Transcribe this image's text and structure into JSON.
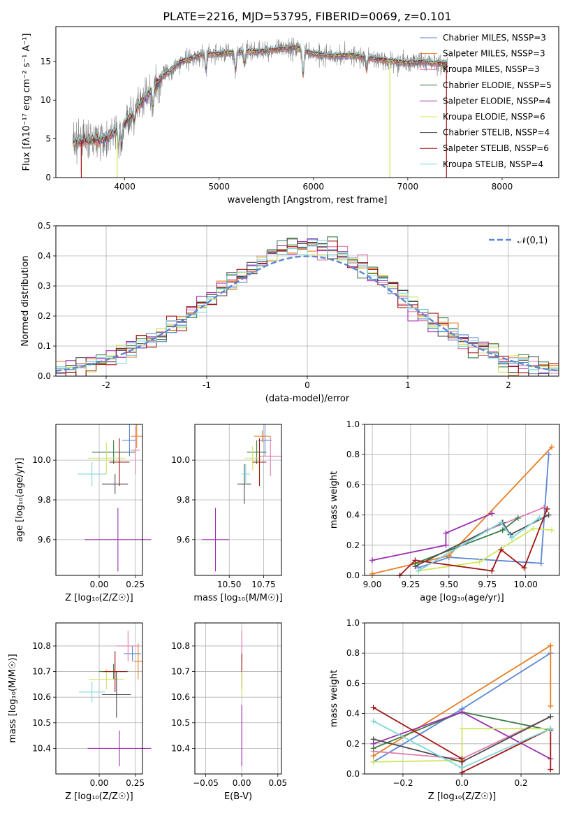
{
  "figure_title": "PLATE=2216, MJD=53795, FIBERID=0069, z=0.101",
  "chart_data": [
    {
      "id": "spectrum",
      "type": "line",
      "xlabel": "wavelength [Angstrom, rest frame]",
      "ylabel": "Flux [fλ10⁻¹⁷ erg cm⁻² s⁻¹ A⁻¹]",
      "xlim": [
        3270,
        8600
      ],
      "ylim": [
        0,
        19.5
      ],
      "xticks": [
        4000,
        5000,
        6000,
        7000,
        8000
      ],
      "yticks": [
        0,
        5,
        10,
        15
      ],
      "legend_position": "right",
      "data_trace": {
        "name": "data",
        "color": "#7f7f7f"
      },
      "continuum_knots": {
        "x": [
          3450,
          3600,
          3800,
          4000,
          4200,
          4400,
          4600,
          4800,
          5000,
          5200,
          5400,
          5600,
          5800,
          6000,
          6200,
          6400,
          6600,
          6800,
          7000,
          7200,
          7400
        ],
        "y": [
          4.5,
          4.8,
          5.0,
          7.0,
          10.0,
          13.0,
          15.0,
          15.8,
          16.0,
          16.2,
          16.3,
          16.5,
          16.8,
          16.0,
          15.7,
          15.8,
          15.4,
          15.1,
          14.8,
          14.9,
          14.6
        ]
      },
      "series": [
        {
          "name": "Chabrier MILES, NSSP=3",
          "color": "#5b86d3"
        },
        {
          "name": "Salpeter MILES, NSSP=3",
          "color": "#e67e22"
        },
        {
          "name": "Kroupa MILES, NSSP=3",
          "color": "#e07bb0"
        },
        {
          "name": "Chabrier ELODIE, NSSP=5",
          "color": "#3a7d44"
        },
        {
          "name": "Salpeter ELODIE, NSSP=4",
          "color": "#9b2fae"
        },
        {
          "name": "Kroupa ELODIE, NSSP=6",
          "color": "#cde85c"
        },
        {
          "name": "Chabrier STELIB, NSSP=4",
          "color": "#4d4d4d"
        },
        {
          "name": "Salpeter STELIB, NSSP=6",
          "color": "#a31515"
        },
        {
          "name": "Kroupa STELIB, NSSP=4",
          "color": "#7fd8dc"
        }
      ]
    },
    {
      "id": "residuals",
      "type": "line",
      "xlabel": "(data-model)/error",
      "ylabel": "Normed distribution",
      "xlim": [
        -2.5,
        2.5
      ],
      "ylim": [
        0,
        0.5
      ],
      "xticks": [
        -2,
        -1,
        0,
        1,
        2
      ],
      "yticks": [
        0.0,
        0.1,
        0.2,
        0.3,
        0.4,
        0.5
      ],
      "grid": true,
      "legend": "𝒩(0,1)",
      "legend_position": "top-right",
      "reference_color": "#5b86d3",
      "bin_width": 0.1,
      "series_colors": [
        "#5b86d3",
        "#e67e22",
        "#e07bb0",
        "#3a7d44",
        "#9b2fae",
        "#cde85c",
        "#4d4d4d",
        "#a31515",
        "#7fd8dc"
      ]
    },
    {
      "id": "age_vs_Z",
      "type": "scatter",
      "xlabel": "Z [log₁₀(Z/Z☉)]",
      "ylabel": "age  [log₁₀(age/yr)]",
      "xlim": [
        -0.3,
        0.3
      ],
      "ylim": [
        9.42,
        10.18
      ],
      "xticks": [
        0.0,
        0.25
      ],
      "xtick_labels": [
        "0.00",
        "0.25"
      ],
      "yticks": [
        9.6,
        9.8,
        10.0
      ],
      "grid": true,
      "points": [
        {
          "color": "#5b86d3",
          "x": 0.21,
          "y": 10.1,
          "xerr": 0.05,
          "yerr": 0.08
        },
        {
          "color": "#e67e22",
          "x": 0.26,
          "y": 10.12,
          "xerr": 0.04,
          "yerr": 0.06
        },
        {
          "color": "#e07bb0",
          "x": 0.25,
          "y": 10.05,
          "xerr": 0.03,
          "yerr": 0.12
        },
        {
          "color": "#3a7d44",
          "x": 0.1,
          "y": 10.04,
          "xerr": 0.15,
          "yerr": 0.06
        },
        {
          "color": "#9b2fae",
          "x": 0.13,
          "y": 9.6,
          "xerr": 0.23,
          "yerr": 0.16
        },
        {
          "color": "#cde85c",
          "x": 0.05,
          "y": 10.01,
          "xerr": 0.13,
          "yerr": 0.08
        },
        {
          "color": "#4d4d4d",
          "x": 0.11,
          "y": 9.88,
          "xerr": 0.09,
          "yerr": 0.05
        },
        {
          "color": "#a31515",
          "x": 0.14,
          "y": 9.99,
          "xerr": 0.07,
          "yerr": 0.12
        },
        {
          "color": "#7fd8dc",
          "x": -0.05,
          "y": 9.93,
          "xerr": 0.1,
          "yerr": 0.06
        }
      ]
    },
    {
      "id": "age_vs_mass",
      "type": "scatter",
      "xlabel": "mass [log₁₀(M/M☉)]",
      "xlim": [
        10.25,
        10.88
      ],
      "ylim": [
        9.42,
        10.18
      ],
      "xticks": [
        10.5,
        10.75
      ],
      "xtick_labels": [
        "10.50",
        "10.75"
      ],
      "yticks": [
        9.6,
        9.8,
        10.0
      ],
      "grid": true,
      "points": [
        {
          "color": "#5b86d3",
          "x": 10.76,
          "y": 10.1,
          "xerr": 0.05,
          "yerr": 0.08
        },
        {
          "color": "#e67e22",
          "x": 10.74,
          "y": 10.12,
          "xerr": 0.06,
          "yerr": 0.03
        },
        {
          "color": "#e07bb0",
          "x": 10.8,
          "y": 10.02,
          "xerr": 0.08,
          "yerr": 0.1
        },
        {
          "color": "#3a7d44",
          "x": 10.7,
          "y": 10.04,
          "xerr": 0.07,
          "yerr": 0.06
        },
        {
          "color": "#9b2fae",
          "x": 10.4,
          "y": 9.6,
          "xerr": 0.1,
          "yerr": 0.16
        },
        {
          "color": "#cde85c",
          "x": 10.67,
          "y": 10.01,
          "xerr": 0.06,
          "yerr": 0.06
        },
        {
          "color": "#4d4d4d",
          "x": 10.61,
          "y": 9.88,
          "xerr": 0.05,
          "yerr": 0.1
        },
        {
          "color": "#a31515",
          "x": 10.72,
          "y": 9.99,
          "xerr": 0.05,
          "yerr": 0.12
        },
        {
          "color": "#7fd8dc",
          "x": 10.62,
          "y": 9.93,
          "xerr": 0.03,
          "yerr": 0.05
        }
      ]
    },
    {
      "id": "weight_vs_age",
      "type": "line",
      "xlabel": "age  [log₁₀(age/yr)]",
      "ylabel": "mass weight",
      "xlim": [
        8.95,
        10.22
      ],
      "ylim": [
        0.0,
        1.0
      ],
      "xticks": [
        9.0,
        9.25,
        9.5,
        9.75,
        10.0
      ],
      "xtick_labels": [
        "9.00",
        "9.25",
        "9.50",
        "9.75",
        "10.00"
      ],
      "yticks": [
        0.0,
        0.2,
        0.4,
        0.6,
        0.8,
        1.0
      ],
      "grid": true,
      "series": [
        {
          "color": "#5b86d3",
          "x": [
            9.3,
            9.5,
            10.1,
            10.15
          ],
          "y": [
            0.05,
            0.12,
            0.08,
            0.8
          ]
        },
        {
          "color": "#e67e22",
          "x": [
            9.0,
            9.5,
            10.17
          ],
          "y": [
            0.01,
            0.13,
            0.85
          ]
        },
        {
          "color": "#e07bb0",
          "x": [
            9.3,
            9.75,
            10.12
          ],
          "y": [
            0.03,
            0.3,
            0.45
          ]
        },
        {
          "color": "#3a7d44",
          "x": [
            9.28,
            9.85,
            9.95
          ],
          "y": [
            0.08,
            0.3,
            0.38
          ]
        },
        {
          "color": "#9b2fae",
          "x": [
            9.0,
            9.48,
            9.48,
            9.78
          ],
          "y": [
            0.1,
            0.2,
            0.28,
            0.41
          ]
        },
        {
          "color": "#cde85c",
          "x": [
            9.3,
            9.7,
            10.05,
            10.17
          ],
          "y": [
            0.03,
            0.09,
            0.31,
            0.3
          ]
        },
        {
          "color": "#4d4d4d",
          "x": [
            9.28,
            9.85,
            9.9,
            10.15
          ],
          "y": [
            0.06,
            0.35,
            0.27,
            0.4
          ]
        },
        {
          "color": "#a31515",
          "x": [
            9.18,
            9.28,
            9.78,
            9.84,
            9.99,
            10.14
          ],
          "y": [
            0.0,
            0.1,
            0.03,
            0.17,
            0.05,
            0.44
          ]
        },
        {
          "color": "#7fd8dc",
          "x": [
            9.3,
            9.84,
            9.91,
            10.09
          ],
          "y": [
            0.03,
            0.35,
            0.25,
            0.38
          ]
        }
      ]
    },
    {
      "id": "mass_vs_Z",
      "type": "scatter",
      "xlabel": "Z [log₁₀(Z/Z☉)]",
      "ylabel": "mass [log₁₀(M/M☉)]",
      "xlim": [
        -0.3,
        0.3
      ],
      "ylim": [
        10.3,
        10.89
      ],
      "xticks": [
        0.0,
        0.25
      ],
      "xtick_labels": [
        "0.00",
        "0.25"
      ],
      "yticks": [
        10.4,
        10.5,
        10.6,
        10.7,
        10.8
      ],
      "grid": true,
      "points": [
        {
          "color": "#5b86d3",
          "x": 0.23,
          "y": 10.77,
          "xerr": 0.06,
          "yerr": 0.03
        },
        {
          "color": "#e67e22",
          "x": 0.27,
          "y": 10.74,
          "xerr": 0.03,
          "yerr": 0.07
        },
        {
          "color": "#e07bb0",
          "x": 0.2,
          "y": 10.8,
          "xerr": 0.08,
          "yerr": 0.06
        },
        {
          "color": "#3a7d44",
          "x": 0.1,
          "y": 10.7,
          "xerr": 0.1,
          "yerr": 0.03
        },
        {
          "color": "#9b2fae",
          "x": 0.14,
          "y": 10.4,
          "xerr": 0.22,
          "yerr": 0.07
        },
        {
          "color": "#cde85c",
          "x": 0.05,
          "y": 10.67,
          "xerr": 0.12,
          "yerr": 0.04
        },
        {
          "color": "#4d4d4d",
          "x": 0.12,
          "y": 10.61,
          "xerr": 0.1,
          "yerr": 0.09
        },
        {
          "color": "#a31515",
          "x": 0.11,
          "y": 10.7,
          "xerr": 0.08,
          "yerr": 0.08
        },
        {
          "color": "#7fd8dc",
          "x": -0.05,
          "y": 10.62,
          "xerr": 0.09,
          "yerr": 0.04
        }
      ]
    },
    {
      "id": "mass_vs_EBV",
      "type": "scatter",
      "xlabel": "E(B-V)",
      "xlim": [
        -0.065,
        0.055
      ],
      "ylim": [
        10.3,
        10.89
      ],
      "xticks": [
        -0.05,
        0.0,
        0.05
      ],
      "xtick_labels": [
        "−0.05",
        "0.00",
        "0.05"
      ],
      "yticks": [
        10.4,
        10.5,
        10.6,
        10.7,
        10.8
      ],
      "grid": true,
      "points": [
        {
          "color": "#e07bb0",
          "x": 0.0,
          "y": 10.8,
          "yerr": 0.06
        },
        {
          "color": "#a31515",
          "x": 0.0,
          "y": 10.7,
          "yerr": 0.07
        },
        {
          "color": "#cde85c",
          "x": 0.0,
          "y": 10.65,
          "yerr": 0.05
        },
        {
          "color": "#9b2fae",
          "x": 0.0,
          "y": 10.45,
          "yerr": 0.12
        }
      ]
    },
    {
      "id": "weight_vs_Z",
      "type": "line",
      "xlabel": "Z [log₁₀(Z/Z☉)]",
      "ylabel": "mass weight",
      "xlim": [
        -0.33,
        0.33
      ],
      "ylim": [
        0.0,
        1.0
      ],
      "xticks": [
        -0.2,
        0.0,
        0.2
      ],
      "xtick_labels": [
        "−0.2",
        "0.0",
        "0.2"
      ],
      "yticks": [
        0.0,
        0.2,
        0.4,
        0.6,
        0.8,
        1.0
      ],
      "grid": true,
      "series": [
        {
          "color": "#5b86d3",
          "x": [
            -0.3,
            0.0,
            0.3
          ],
          "y": [
            0.08,
            0.43,
            0.8
          ]
        },
        {
          "color": "#e67e22",
          "x": [
            -0.3,
            0.3,
            0.3
          ],
          "y": [
            0.12,
            0.85,
            0.45
          ]
        },
        {
          "color": "#e07bb0",
          "x": [
            -0.3,
            0.0,
            0.3
          ],
          "y": [
            0.15,
            0.1,
            0.38
          ]
        },
        {
          "color": "#3a7d44",
          "x": [
            -0.3,
            0.0,
            0.3
          ],
          "y": [
            0.17,
            0.41,
            0.29
          ]
        },
        {
          "color": "#9b2fae",
          "x": [
            -0.3,
            0.0,
            0.3
          ],
          "y": [
            0.2,
            0.41,
            0.1
          ]
        },
        {
          "color": "#cde85c",
          "x": [
            -0.3,
            0.0,
            0.0,
            0.3
          ],
          "y": [
            0.08,
            0.09,
            0.3,
            0.3
          ]
        },
        {
          "color": "#4d4d4d",
          "x": [
            -0.3,
            0.0,
            0.3
          ],
          "y": [
            0.23,
            0.08,
            0.38
          ]
        },
        {
          "color": "#a31515",
          "x": [
            -0.3,
            0.0,
            0.0,
            0.3,
            0.3
          ],
          "y": [
            0.44,
            0.1,
            0.01,
            0.3,
            0.03
          ]
        },
        {
          "color": "#7fd8dc",
          "x": [
            -0.3,
            0.0,
            0.3
          ],
          "y": [
            0.35,
            0.04,
            0.3
          ]
        }
      ]
    }
  ]
}
